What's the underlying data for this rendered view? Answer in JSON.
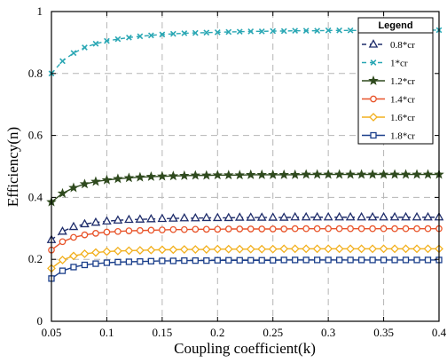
{
  "chart_data": {
    "type": "line",
    "xlabel": "Coupling coefficient(k)",
    "ylabel": "Efficiency(n)",
    "xlim": [
      0.05,
      0.4
    ],
    "ylim": [
      0,
      1
    ],
    "grid": true,
    "legend_title": "Legend",
    "legend_position": "top-right",
    "x_ticks": [
      "0.05",
      "0.1",
      "0.15",
      "0.2",
      "0.25",
      "0.3",
      "0.35",
      "0.4"
    ],
    "y_ticks": [
      "0",
      "0.2",
      "0.4",
      "0.6",
      "0.8",
      "1"
    ],
    "x": [
      0.05,
      0.06,
      0.07,
      0.08,
      0.09,
      0.1,
      0.11,
      0.12,
      0.13,
      0.14,
      0.15,
      0.16,
      0.17,
      0.18,
      0.19,
      0.2,
      0.21,
      0.22,
      0.23,
      0.24,
      0.25,
      0.26,
      0.27,
      0.28,
      0.29,
      0.3,
      0.31,
      0.32,
      0.33,
      0.34,
      0.35,
      0.36,
      0.37,
      0.38,
      0.39,
      0.4
    ],
    "series": [
      {
        "name": "0.8*cr",
        "marker": "triangle",
        "line": "dashed",
        "color": "#1f2d6b",
        "values": [
          0.263,
          0.29,
          0.305,
          0.314,
          0.319,
          0.323,
          0.326,
          0.328,
          0.329,
          0.33,
          0.331,
          0.332,
          0.333,
          0.333,
          0.334,
          0.334,
          0.334,
          0.335,
          0.335,
          0.335,
          0.335,
          0.335,
          0.336,
          0.336,
          0.336,
          0.336,
          0.336,
          0.336,
          0.336,
          0.336,
          0.336,
          0.336,
          0.336,
          0.336,
          0.336,
          0.336
        ]
      },
      {
        "name": "1*cr",
        "marker": "x",
        "line": "dashed",
        "color": "#2aa7b4",
        "values": [
          0.8,
          0.84,
          0.866,
          0.884,
          0.896,
          0.905,
          0.911,
          0.916,
          0.92,
          0.923,
          0.926,
          0.928,
          0.93,
          0.931,
          0.932,
          0.933,
          0.934,
          0.935,
          0.936,
          0.936,
          0.937,
          0.937,
          0.938,
          0.938,
          0.938,
          0.939,
          0.939,
          0.939,
          0.939,
          0.94,
          0.94,
          0.94,
          0.94,
          0.94,
          0.94,
          0.94
        ]
      },
      {
        "name": "1.2*cr",
        "marker": "star",
        "line": "solid",
        "color": "#2f4a1e",
        "values": [
          0.385,
          0.413,
          0.431,
          0.443,
          0.451,
          0.456,
          0.46,
          0.463,
          0.465,
          0.467,
          0.468,
          0.469,
          0.47,
          0.471,
          0.471,
          0.472,
          0.472,
          0.472,
          0.473,
          0.473,
          0.473,
          0.473,
          0.473,
          0.474,
          0.474,
          0.474,
          0.474,
          0.474,
          0.474,
          0.474,
          0.474,
          0.474,
          0.474,
          0.474,
          0.474,
          0.474
        ]
      },
      {
        "name": "1.4*cr",
        "marker": "circle",
        "line": "solid",
        "color": "#e8542a",
        "values": [
          0.23,
          0.257,
          0.271,
          0.279,
          0.284,
          0.288,
          0.29,
          0.292,
          0.293,
          0.294,
          0.295,
          0.296,
          0.296,
          0.297,
          0.297,
          0.297,
          0.298,
          0.298,
          0.298,
          0.298,
          0.298,
          0.298,
          0.299,
          0.299,
          0.299,
          0.299,
          0.299,
          0.299,
          0.299,
          0.299,
          0.299,
          0.299,
          0.299,
          0.299,
          0.299,
          0.299
        ]
      },
      {
        "name": "1.6*cr",
        "marker": "diamond",
        "line": "solid",
        "color": "#f2b01e",
        "values": [
          0.171,
          0.198,
          0.211,
          0.218,
          0.222,
          0.225,
          0.227,
          0.228,
          0.229,
          0.23,
          0.231,
          0.231,
          0.232,
          0.232,
          0.232,
          0.233,
          0.233,
          0.233,
          0.233,
          0.233,
          0.233,
          0.234,
          0.234,
          0.234,
          0.234,
          0.234,
          0.234,
          0.234,
          0.234,
          0.234,
          0.234,
          0.234,
          0.234,
          0.234,
          0.234,
          0.234
        ]
      },
      {
        "name": "1.8*cr",
        "marker": "square",
        "line": "solid",
        "color": "#1b3f8b",
        "values": [
          0.138,
          0.163,
          0.175,
          0.182,
          0.186,
          0.189,
          0.191,
          0.192,
          0.193,
          0.194,
          0.195,
          0.195,
          0.196,
          0.196,
          0.196,
          0.197,
          0.197,
          0.197,
          0.197,
          0.197,
          0.197,
          0.198,
          0.198,
          0.198,
          0.198,
          0.198,
          0.198,
          0.198,
          0.198,
          0.198,
          0.198,
          0.198,
          0.198,
          0.198,
          0.198,
          0.198
        ]
      }
    ]
  }
}
